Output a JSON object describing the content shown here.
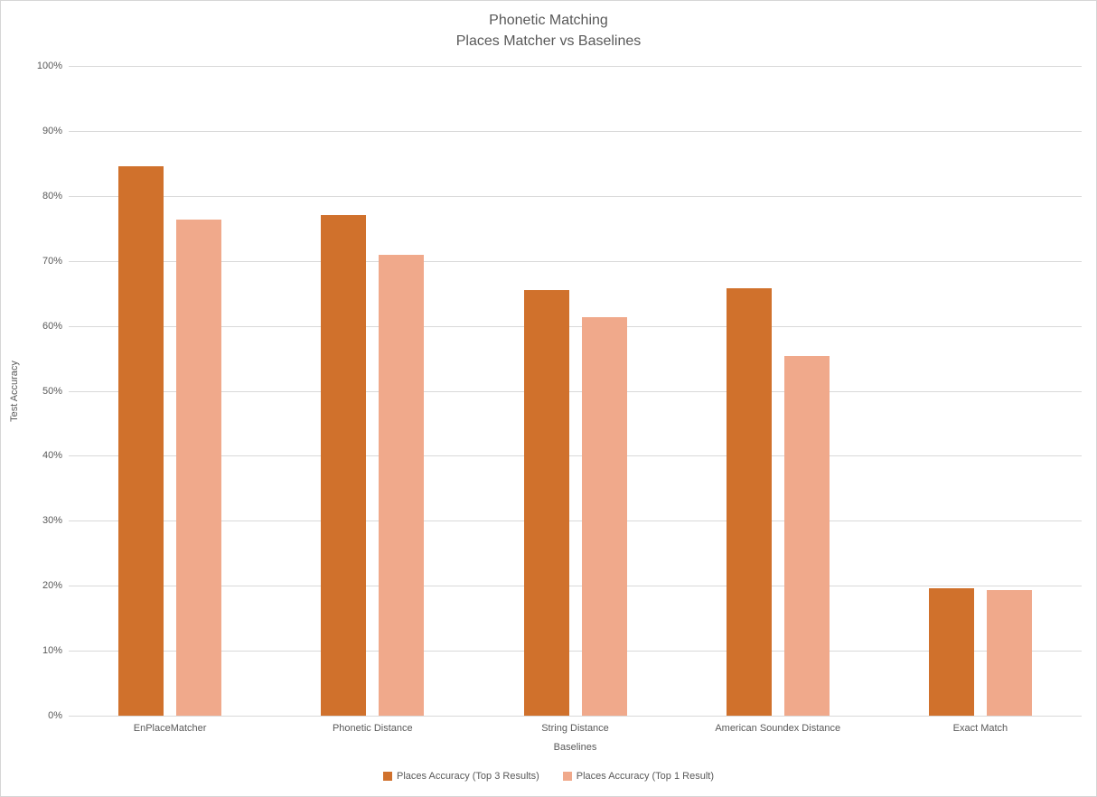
{
  "chart_data": {
    "type": "bar",
    "title_line1": "Phonetic Matching",
    "title_line2": "Places Matcher vs Baselines",
    "categories": [
      "EnPlaceMatcher",
      "Phonetic Distance",
      "String Distance",
      "American Soundex Distance",
      "Exact Match"
    ],
    "series": [
      {
        "name": "Places Accuracy (Top 3 Results)",
        "color": "#D0712C",
        "values": [
          84.5,
          77.1,
          65.5,
          65.8,
          19.6
        ]
      },
      {
        "name": "Places Accuracy (Top 1 Result)",
        "color": "#F0A98B",
        "values": [
          76.3,
          71.0,
          61.4,
          55.4,
          19.4
        ]
      }
    ],
    "xlabel": "Baselines",
    "ylabel": "Test Accuracy",
    "ylim": [
      0,
      100
    ],
    "ytick_step": 10,
    "ytick_suffix": "%",
    "grid": true,
    "legend_position": "bottom",
    "colors": {
      "text": "#595959",
      "gridline": "#D9D9D9",
      "background": "#FFFFFF",
      "border": "#D6D6D6"
    }
  }
}
